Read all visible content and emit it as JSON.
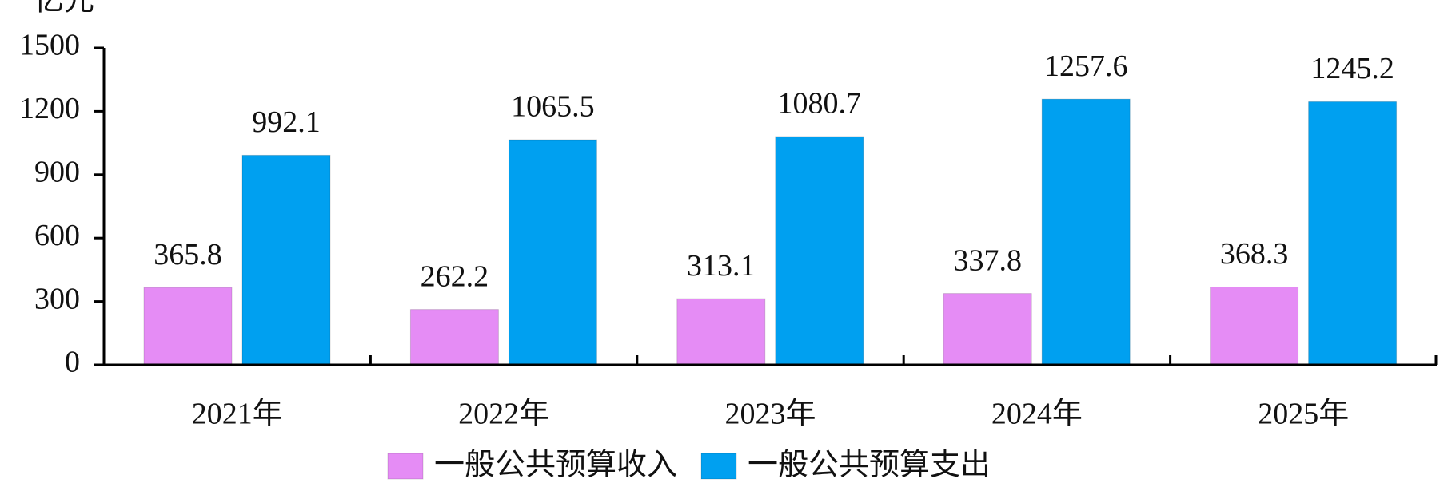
{
  "chart_data": {
    "type": "bar",
    "y_label": "亿元",
    "categories": [
      "2021年",
      "2022年",
      "2023年",
      "2024年",
      "2025年"
    ],
    "series": [
      {
        "name": "一般公共预算收入",
        "color": "#e58cf5",
        "values": [
          365.8,
          262.2,
          313.1,
          337.8,
          368.3
        ]
      },
      {
        "name": "一般公共预算支出",
        "color": "#00a0f0",
        "values": [
          992.1,
          1065.5,
          1080.7,
          1257.6,
          1245.2
        ]
      }
    ],
    "ylim": [
      0,
      1500
    ],
    "yticks": [
      0,
      300,
      600,
      900,
      1200,
      1500
    ],
    "grid": false
  }
}
